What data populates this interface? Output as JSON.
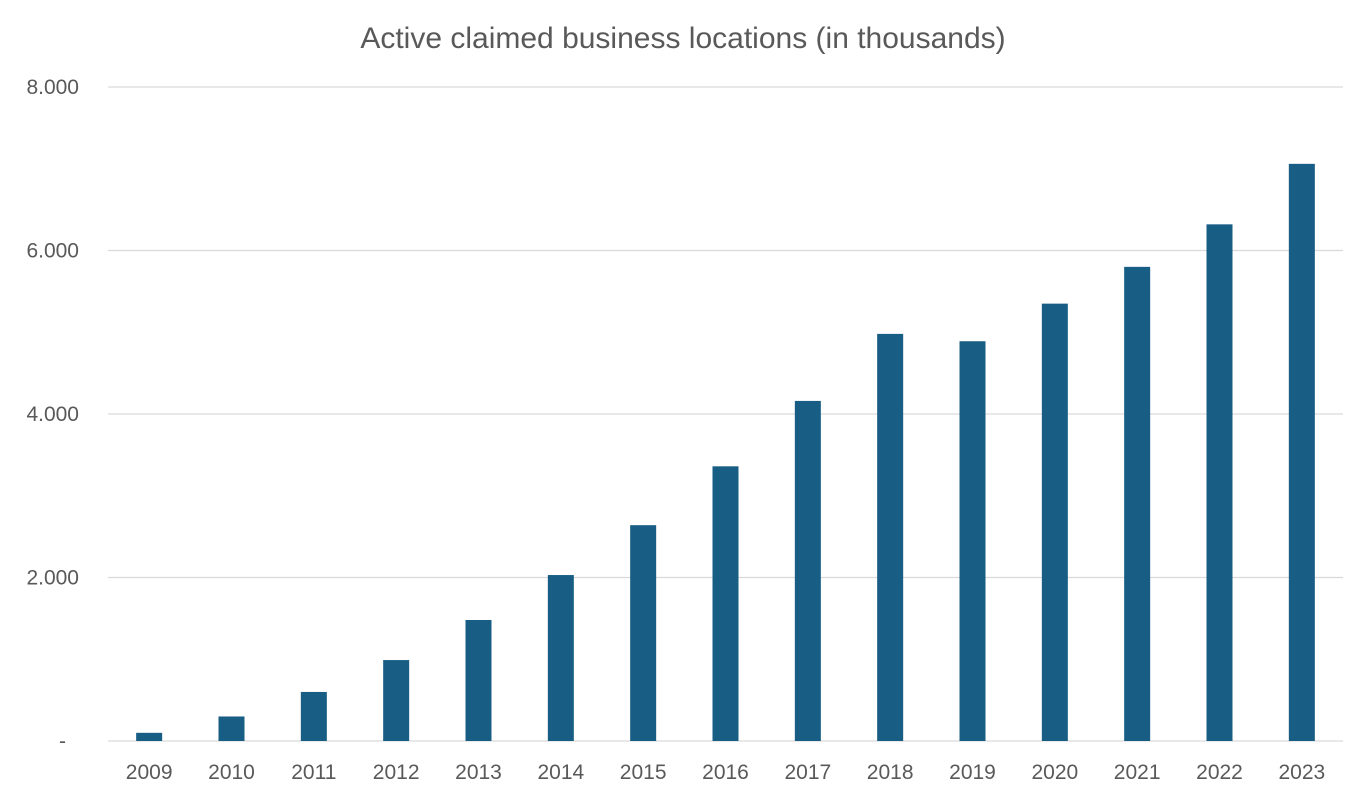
{
  "chart_data": {
    "type": "bar",
    "title": "Active claimed business locations (in thousands)",
    "xlabel": "",
    "ylabel": "",
    "categories": [
      "2009",
      "2010",
      "2011",
      "2012",
      "2013",
      "2014",
      "2015",
      "2016",
      "2017",
      "2018",
      "2019",
      "2020",
      "2021",
      "2022",
      "2023"
    ],
    "series": [
      {
        "values": [
          100,
          300,
          600,
          990,
          1480,
          2030,
          2640,
          3360,
          4160,
          4980,
          4890,
          5350,
          5800,
          6320,
          7060
        ],
        "color": "#175d84"
      }
    ],
    "ylim": [
      0,
      8000
    ],
    "yticks": [
      0,
      2000,
      4000,
      6000,
      8000
    ],
    "ytick_labels": [
      "-",
      "2.000",
      "4.000",
      "6.000",
      "8.000"
    ],
    "grid": true,
    "legend": "none",
    "colors": {
      "bar": "#175d84",
      "grid": "#d9d9d9",
      "text": "#595959"
    }
  }
}
